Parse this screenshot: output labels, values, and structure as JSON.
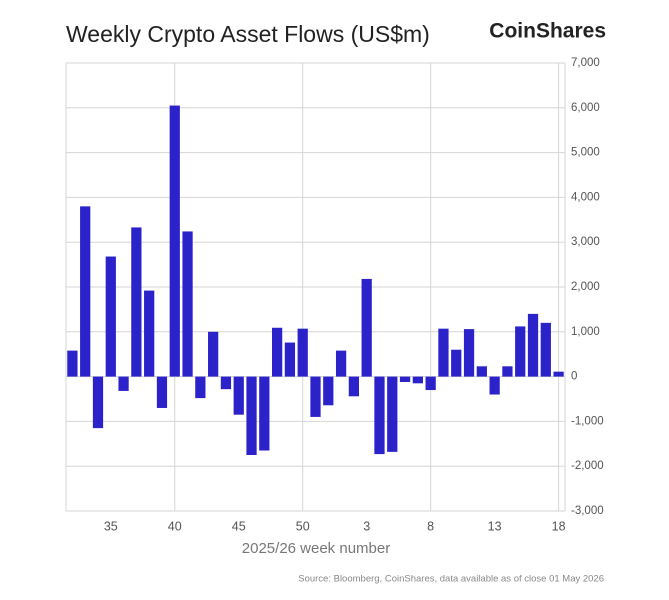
{
  "chart_data": {
    "type": "bar",
    "title": "Weekly Crypto Asset Flows (US$m)",
    "brand": "CoinShares",
    "x_label": "2025/26 week number",
    "source": "Source: Bloomberg, CoinShares, data available as of close 01 May 2026",
    "categories": [
      null,
      null,
      null,
      "35",
      null,
      null,
      null,
      null,
      "40",
      null,
      null,
      null,
      null,
      "45",
      null,
      null,
      null,
      null,
      "50",
      null,
      null,
      null,
      null,
      "3",
      null,
      null,
      null,
      null,
      "8",
      null,
      null,
      null,
      null,
      "13",
      null,
      null,
      null,
      null,
      "18"
    ],
    "values": [
      580,
      3800,
      -1150,
      2680,
      -320,
      3330,
      1920,
      -700,
      6050,
      3240,
      -480,
      1000,
      -280,
      -850,
      -1750,
      -1650,
      1090,
      760,
      1070,
      -900,
      -640,
      580,
      -440,
      2180,
      -1730,
      -1680,
      -120,
      -150,
      -300,
      1070,
      600,
      1060,
      230,
      -400,
      230,
      1120,
      1400,
      1200,
      110
    ],
    "color": "#2b22c9",
    "ylim": [
      -3000,
      7000
    ],
    "yticks": [
      {
        "value": -3000,
        "label": "-3,000"
      },
      {
        "value": -2000,
        "label": "-2,000"
      },
      {
        "value": -1000,
        "label": "-1,000"
      },
      0,
      {
        "value": 1000,
        "label": "1,000"
      },
      {
        "value": 2000,
        "label": "2,000"
      },
      {
        "value": 3000,
        "label": "3,000"
      },
      {
        "value": 4000,
        "label": "4,000"
      },
      {
        "value": 5000,
        "label": "5,000"
      },
      {
        "value": 6000,
        "label": "6,000"
      },
      {
        "value": 7000,
        "label": "7,000"
      }
    ],
    "grid": true
  }
}
